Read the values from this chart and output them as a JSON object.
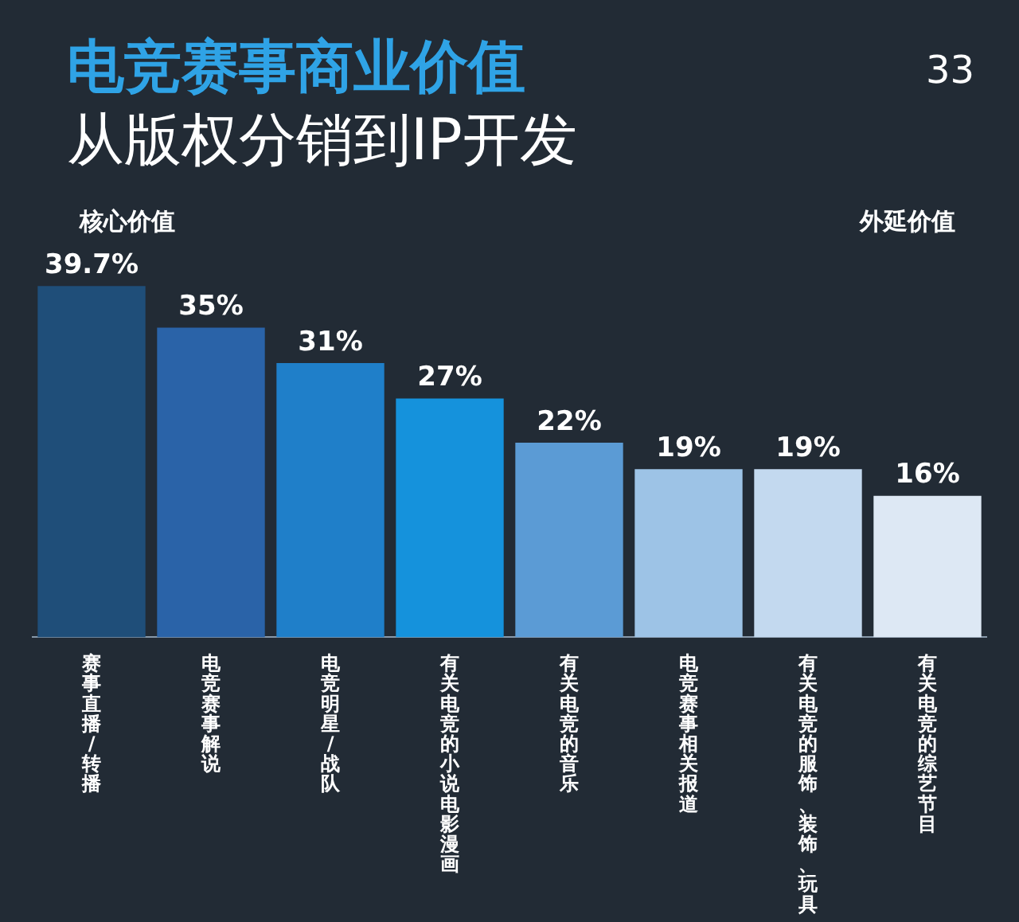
{
  "chart_data": {
    "type": "bar",
    "title": "电竞赛事商业价值",
    "subtitle": "从版权分销到IP开发",
    "categories": [
      "赛事直播/转播",
      "电竞赛事解说",
      "电竞明星/战队",
      "有关电竞的小说电影漫画",
      "有关电竞的音乐",
      "电竞赛事相关报道",
      "有关电竞的服饰、装饰、玩具",
      "有关电竞的综艺节目"
    ],
    "values": [
      39.7,
      35,
      31,
      27,
      22,
      19,
      19,
      16
    ],
    "value_labels": [
      "39.7%",
      "35%",
      "31%",
      "27%",
      "22%",
      "19%",
      "19%",
      "16%"
    ],
    "colors": [
      "#1f4e79",
      "#2a63a8",
      "#1f7fc9",
      "#1592dc",
      "#5b9bd5",
      "#9dc3e6",
      "#c3d9ef",
      "#dde8f4"
    ],
    "annotations": [
      "33",
      "核心价值",
      "外延价值"
    ],
    "grid": false,
    "legend": false
  }
}
